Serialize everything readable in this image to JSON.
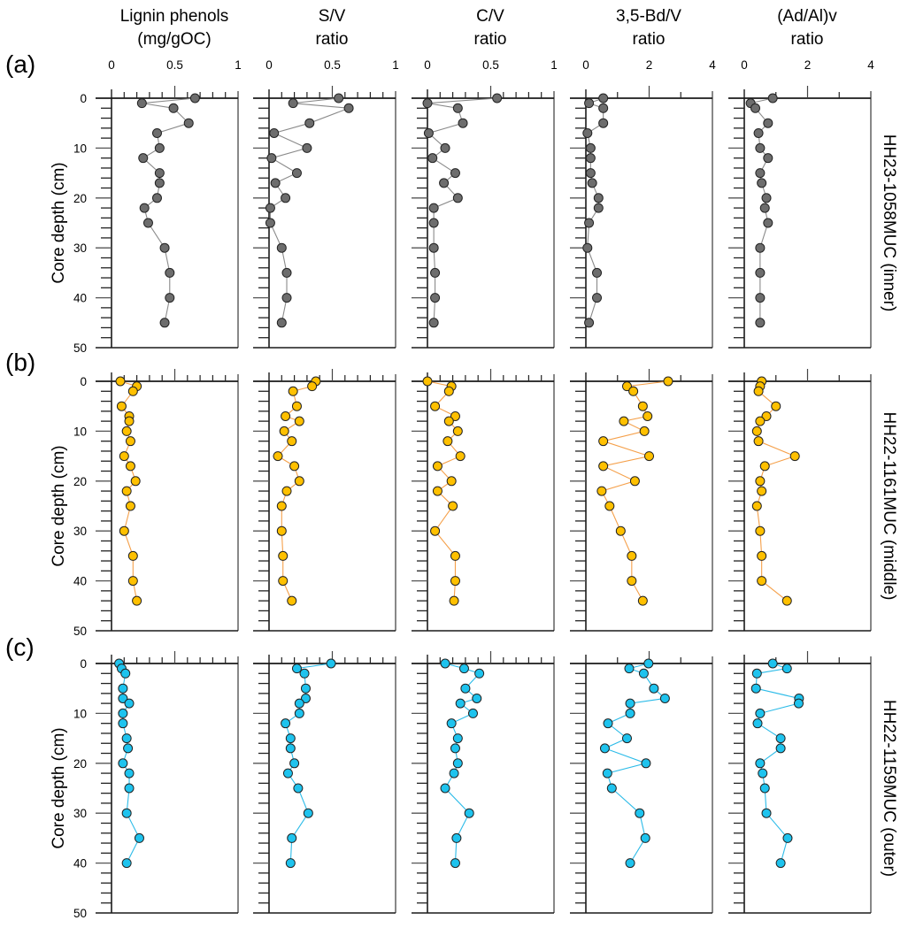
{
  "chart_data": {
    "type": "line",
    "description": "Down-core profiles of lignin phenol parameters for three multicores",
    "yaxis": {
      "label": "Core depth (cm)",
      "range": [
        0,
        50
      ],
      "ticks": [
        0,
        10,
        20,
        30,
        40,
        50
      ],
      "minor_step": 2,
      "inverted": true
    },
    "variables": [
      {
        "key": "lignin",
        "title_line1": "Lignin phenols",
        "title_line2": "(mg/gOC)",
        "xlim": [
          0,
          1
        ],
        "major_ticks": [
          0,
          0.5,
          1
        ],
        "tick_labels": [
          "0",
          "0.5",
          "1"
        ],
        "minor_step": 0.1
      },
      {
        "key": "sv",
        "title_line1": "S/V",
        "title_line2": "ratio",
        "xlim": [
          0,
          1
        ],
        "major_ticks": [
          0,
          0.5,
          1
        ],
        "tick_labels": [
          "0",
          "0.5",
          "1"
        ],
        "minor_step": 0.1
      },
      {
        "key": "cv",
        "title_line1": "C/V",
        "title_line2": "ratio",
        "xlim": [
          0,
          1
        ],
        "major_ticks": [
          0,
          0.5,
          1
        ],
        "tick_labels": [
          "0",
          "0.5",
          "1"
        ],
        "minor_step": 0.1
      },
      {
        "key": "bdv",
        "title_line1": "3,5-Bd/V",
        "title_line2": "ratio",
        "xlim": [
          0,
          4
        ],
        "major_ticks": [
          0,
          2,
          4
        ],
        "tick_labels": [
          "0",
          "2",
          "4"
        ],
        "minor_step": 1
      },
      {
        "key": "adal",
        "title_line1": "(Ad/Al)v",
        "title_line2": "ratio",
        "xlim": [
          0,
          4
        ],
        "major_ticks": [
          0,
          2,
          4
        ],
        "tick_labels": [
          "0",
          "2",
          "4"
        ],
        "minor_step": 1
      }
    ],
    "rows": [
      {
        "panel_label": "(a)",
        "core": "HH23-1058MUC (inner)",
        "marker_color": "#6d6d6d",
        "line_color": "#8a8a8a",
        "depth": [
          0,
          1,
          2,
          5,
          7,
          10,
          12,
          15,
          17,
          20,
          22,
          25,
          30,
          35,
          40,
          45
        ],
        "series": {
          "lignin": [
            0.66,
            0.24,
            0.49,
            0.61,
            0.36,
            0.38,
            0.25,
            0.38,
            0.38,
            0.36,
            0.26,
            0.29,
            0.42,
            0.46,
            0.46,
            0.42
          ],
          "sv": [
            0.55,
            0.19,
            0.63,
            0.32,
            0.04,
            0.3,
            0.02,
            0.22,
            0.05,
            0.13,
            0.01,
            0.01,
            0.1,
            0.14,
            0.14,
            0.1
          ],
          "cv": [
            0.55,
            0.0,
            0.24,
            0.28,
            0.01,
            0.14,
            0.04,
            0.22,
            0.13,
            0.24,
            0.05,
            0.05,
            0.05,
            0.06,
            0.06,
            0.05
          ],
          "bdv": [
            0.55,
            0.1,
            0.55,
            0.55,
            0.05,
            0.15,
            0.15,
            0.15,
            0.2,
            0.4,
            0.4,
            0.1,
            0.05,
            0.35,
            0.35,
            0.1
          ],
          "adal": [
            0.9,
            0.2,
            0.35,
            0.75,
            0.45,
            0.5,
            0.75,
            0.5,
            0.55,
            0.7,
            0.65,
            0.75,
            0.5,
            0.5,
            0.5,
            0.5
          ]
        }
      },
      {
        "panel_label": "(b)",
        "core": "HH22-1161MUC (middle)",
        "marker_color": "#ffc000",
        "line_color": "#f5a04a",
        "depth": [
          0,
          1,
          2,
          5,
          7,
          8,
          10,
          12,
          15,
          17,
          20,
          22,
          25,
          30,
          35,
          40,
          44
        ],
        "series": {
          "lignin": [
            0.07,
            0.2,
            0.17,
            0.08,
            0.14,
            0.14,
            0.12,
            0.15,
            0.1,
            0.15,
            0.19,
            0.12,
            0.15,
            0.1,
            0.17,
            0.17,
            0.2
          ],
          "sv": [
            0.37,
            0.34,
            0.19,
            0.22,
            0.13,
            0.24,
            0.12,
            0.18,
            0.07,
            0.2,
            0.24,
            0.14,
            0.1,
            0.1,
            0.11,
            0.11,
            0.18
          ],
          "cv": [
            0.0,
            0.19,
            0.17,
            0.06,
            0.22,
            0.17,
            0.24,
            0.16,
            0.26,
            0.08,
            0.19,
            0.08,
            0.2,
            0.06,
            0.22,
            0.22,
            0.21
          ],
          "bdv": [
            2.6,
            1.3,
            1.5,
            1.8,
            1.95,
            1.2,
            1.85,
            0.55,
            2.0,
            0.55,
            1.55,
            0.5,
            0.75,
            1.1,
            1.45,
            1.45,
            1.8
          ],
          "adal": [
            0.55,
            0.5,
            0.45,
            1.0,
            0.7,
            0.5,
            0.4,
            0.45,
            1.6,
            0.65,
            0.5,
            0.55,
            0.4,
            0.5,
            0.55,
            0.55,
            1.35
          ]
        }
      },
      {
        "panel_label": "(c)",
        "core": "HH22-1159MUC (outer)",
        "marker_color": "#1ec3ee",
        "line_color": "#2bbbe8",
        "depth": [
          0,
          1,
          2,
          5,
          7,
          8,
          10,
          12,
          15,
          17,
          20,
          22,
          25,
          30,
          35,
          40
        ],
        "series": {
          "lignin": [
            0.06,
            0.08,
            0.11,
            0.09,
            0.09,
            0.14,
            0.09,
            0.09,
            0.12,
            0.13,
            0.09,
            0.14,
            0.14,
            0.12,
            0.22,
            0.12
          ],
          "sv": [
            0.49,
            0.22,
            0.28,
            0.29,
            0.29,
            0.24,
            0.24,
            0.13,
            0.17,
            0.17,
            0.2,
            0.15,
            0.23,
            0.31,
            0.18,
            0.17
          ],
          "cv": [
            0.14,
            0.29,
            0.41,
            0.3,
            0.39,
            0.26,
            0.36,
            0.19,
            0.24,
            0.22,
            0.24,
            0.21,
            0.14,
            0.33,
            0.23,
            0.22
          ],
          "bdv": [
            1.98,
            1.37,
            1.83,
            2.15,
            2.5,
            1.4,
            1.4,
            0.7,
            1.3,
            0.6,
            1.9,
            0.68,
            0.82,
            1.7,
            1.88,
            1.4
          ],
          "adal": [
            0.9,
            1.35,
            0.4,
            0.37,
            1.73,
            1.72,
            0.5,
            0.42,
            1.15,
            1.15,
            0.5,
            0.58,
            0.65,
            0.7,
            1.37,
            1.15
          ]
        }
      }
    ]
  }
}
